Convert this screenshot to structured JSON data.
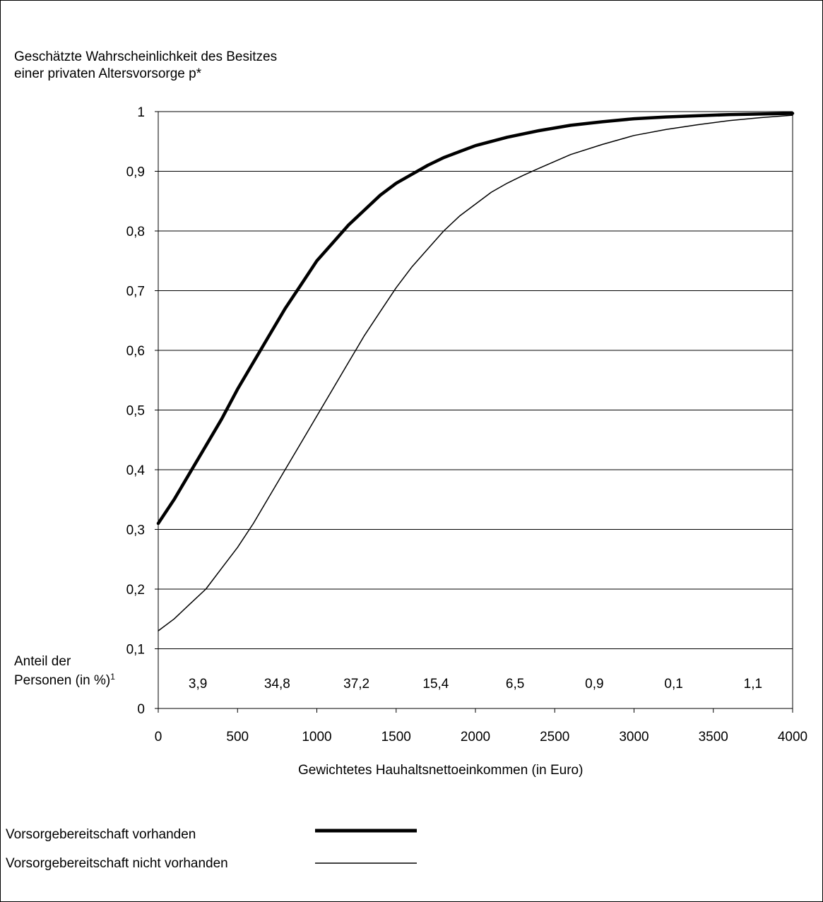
{
  "chart_data": {
    "type": "line",
    "ylabel_lines": [
      "Geschätzte Wahrscheinlichkeit des Besitzes",
      "einer privaten Altersvorsorge p*"
    ],
    "xlabel": "Gewichtetes Hauhaltsnettoeinkommen (in Euro)",
    "xlim": [
      0,
      4000
    ],
    "ylim": [
      0,
      1
    ],
    "x_ticks": [
      0,
      500,
      1000,
      1500,
      2000,
      2500,
      3000,
      3500,
      4000
    ],
    "y_tick_labels": [
      "0",
      "0,1",
      "0,2",
      "0,3",
      "0,4",
      "0,5",
      "0,6",
      "0,7",
      "0,8",
      "0,9",
      "1"
    ],
    "y_ticks": [
      0,
      0.1,
      0.2,
      0.3,
      0.4,
      0.5,
      0.6,
      0.7,
      0.8,
      0.9,
      1
    ],
    "grid": "horizontal",
    "share_caption": {
      "line1": "Anteil der",
      "line2": "Personen (in %)",
      "footnote": "1"
    },
    "share_values": [
      "3,9",
      "34,8",
      "37,2",
      "15,4",
      "6,5",
      "0,9",
      "0,1",
      "1,1"
    ],
    "series": [
      {
        "name": "Vorsorgebereitschaft vorhanden",
        "color": "#000000",
        "style": "thick",
        "points": [
          [
            0,
            0.31
          ],
          [
            100,
            0.35
          ],
          [
            200,
            0.395
          ],
          [
            300,
            0.44
          ],
          [
            400,
            0.485
          ],
          [
            500,
            0.535
          ],
          [
            600,
            0.58
          ],
          [
            700,
            0.625
          ],
          [
            800,
            0.67
          ],
          [
            900,
            0.71
          ],
          [
            1000,
            0.75
          ],
          [
            1100,
            0.78
          ],
          [
            1200,
            0.81
          ],
          [
            1300,
            0.835
          ],
          [
            1400,
            0.86
          ],
          [
            1500,
            0.88
          ],
          [
            1600,
            0.895
          ],
          [
            1700,
            0.91
          ],
          [
            1800,
            0.923
          ],
          [
            1900,
            0.933
          ],
          [
            2000,
            0.943
          ],
          [
            2200,
            0.957
          ],
          [
            2400,
            0.968
          ],
          [
            2600,
            0.977
          ],
          [
            2800,
            0.983
          ],
          [
            3000,
            0.988
          ],
          [
            3200,
            0.991
          ],
          [
            3400,
            0.993
          ],
          [
            3600,
            0.995
          ],
          [
            3800,
            0.996
          ],
          [
            4000,
            0.997
          ]
        ]
      },
      {
        "name": "Vorsorgebereitschaft nicht vorhanden",
        "color": "#000000",
        "style": "thin",
        "points": [
          [
            0,
            0.13
          ],
          [
            100,
            0.15
          ],
          [
            200,
            0.175
          ],
          [
            300,
            0.2
          ],
          [
            400,
            0.235
          ],
          [
            500,
            0.27
          ],
          [
            600,
            0.31
          ],
          [
            700,
            0.355
          ],
          [
            800,
            0.4
          ],
          [
            900,
            0.445
          ],
          [
            1000,
            0.49
          ],
          [
            1100,
            0.535
          ],
          [
            1200,
            0.58
          ],
          [
            1300,
            0.625
          ],
          [
            1400,
            0.665
          ],
          [
            1500,
            0.705
          ],
          [
            1600,
            0.74
          ],
          [
            1700,
            0.77
          ],
          [
            1800,
            0.8
          ],
          [
            1900,
            0.825
          ],
          [
            2000,
            0.845
          ],
          [
            2100,
            0.865
          ],
          [
            2200,
            0.88
          ],
          [
            2300,
            0.893
          ],
          [
            2400,
            0.905
          ],
          [
            2600,
            0.928
          ],
          [
            2800,
            0.945
          ],
          [
            3000,
            0.96
          ],
          [
            3200,
            0.97
          ],
          [
            3400,
            0.978
          ],
          [
            3600,
            0.985
          ],
          [
            3800,
            0.99
          ],
          [
            4000,
            0.994
          ]
        ]
      }
    ]
  }
}
